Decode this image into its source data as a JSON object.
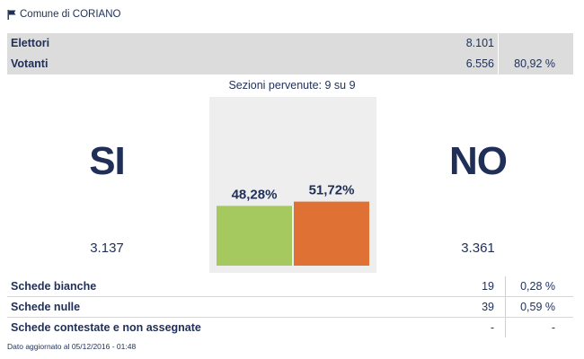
{
  "header": {
    "icon": "flag-icon",
    "title": "Comune di CORIANO"
  },
  "summary": {
    "rows": [
      {
        "label": "Elettori",
        "value": "8.101",
        "percent": ""
      },
      {
        "label": "Votanti",
        "value": "6.556",
        "percent": "80,92 %"
      }
    ]
  },
  "sections_text": "Sezioni pervenute: 9 su 9",
  "yes": {
    "label": "SI",
    "count": "3.137",
    "percent_label": "48,28%",
    "color": "#a6c95f"
  },
  "no": {
    "label": "NO",
    "count": "3.361",
    "percent_label": "51,72%",
    "color": "#e07134"
  },
  "chart_data": {
    "type": "bar",
    "categories": [
      "SI",
      "NO"
    ],
    "values": [
      48.28,
      51.72
    ],
    "unit": "%",
    "ylim": [
      0,
      100
    ],
    "colors": [
      "#a6c95f",
      "#e07134"
    ]
  },
  "bottom_table": {
    "rows": [
      {
        "label": "Schede bianche",
        "value": "19",
        "percent": "0,28 %"
      },
      {
        "label": "Schede nulle",
        "value": "39",
        "percent": "0,59 %"
      },
      {
        "label": "Schede contestate e non assegnate",
        "value": "-",
        "percent": "-"
      }
    ]
  },
  "footer": "Dato aggiornato al 05/12/2016 - 01:48"
}
